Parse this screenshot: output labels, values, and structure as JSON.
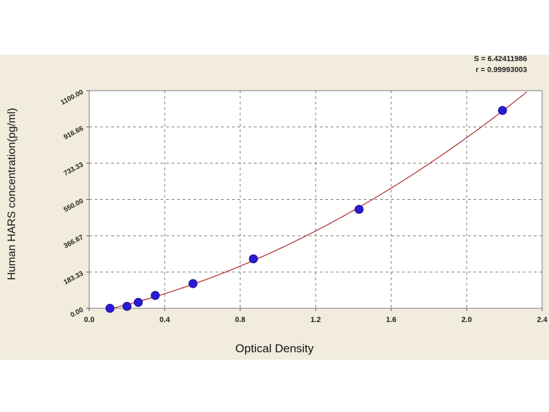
{
  "chart_data": {
    "type": "scatter",
    "title": "",
    "xlabel": "Optical Density",
    "ylabel": "Human HARS concentration(pg/ml)",
    "xlim": [
      0.0,
      2.4
    ],
    "ylim": [
      0.0,
      1100.0
    ],
    "x_ticks": [
      "0.0",
      "0.4",
      "0.8",
      "1.2",
      "1.6",
      "2.0",
      "2.4"
    ],
    "y_ticks": [
      "0.00",
      "183.33",
      "366.67",
      "550.00",
      "733.33",
      "916.66",
      "1100.00"
    ],
    "grid": true,
    "points": [
      {
        "x": 0.11,
        "y": 0.0
      },
      {
        "x": 0.2,
        "y": 10.0
      },
      {
        "x": 0.26,
        "y": 30.0
      },
      {
        "x": 0.35,
        "y": 65.0
      },
      {
        "x": 0.55,
        "y": 125.0
      },
      {
        "x": 0.87,
        "y": 250.0
      },
      {
        "x": 1.43,
        "y": 500.0
      },
      {
        "x": 2.19,
        "y": 1000.0
      }
    ],
    "fit_curve": {
      "x_end": 2.32
    },
    "stats": {
      "s": "S = 6.42411986",
      "r": "r = 0.99993003"
    },
    "colors": {
      "point": "#2b1ad6",
      "curve": "#b02020",
      "plot_bg": "#ffffff",
      "frame_bg": "#f1ecdc",
      "grid": "#7a7a7a"
    }
  }
}
